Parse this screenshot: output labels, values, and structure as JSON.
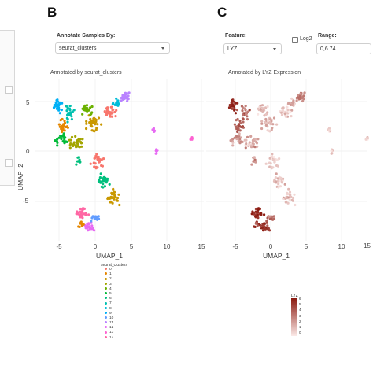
{
  "panels": {
    "b": {
      "letter": "B",
      "control_label": "Annotate Samples By:",
      "select_value": "seurat_clusters",
      "plot_title": "Annotated by seurat_clusters",
      "xlabel": "UMAP_1",
      "ylabel": "UMAP_2",
      "xticks": [
        "-5",
        "0",
        "5",
        "10",
        "15"
      ],
      "yticks": [
        "5",
        "0",
        "-5"
      ]
    },
    "c": {
      "letter": "C",
      "feature_label": "Feature:",
      "feature_value": "LYZ",
      "log2_label": "Log2",
      "range_label": "Range:",
      "range_value": "0,6.74",
      "plot_title": "Annotated by LYZ Expression",
      "xlabel": "UMAP_1",
      "xticks": [
        "-5",
        "0",
        "5",
        "10",
        "15"
      ]
    }
  },
  "legend": {
    "title": "seurat_clusters",
    "items": [
      "0",
      "1",
      "2",
      "3",
      "4",
      "5",
      "6",
      "7",
      "8",
      "9",
      "10",
      "11",
      "12",
      "13",
      "14"
    ],
    "colors": [
      "#F8766D",
      "#E58700",
      "#C99800",
      "#A3A500",
      "#6BB100",
      "#00BA38",
      "#00BF7D",
      "#00C0AF",
      "#00BCD8",
      "#00B0F6",
      "#619CFF",
      "#B983FF",
      "#E76BF3",
      "#FD61D1",
      "#FF67A4"
    ]
  },
  "colorbar": {
    "title": "LYZ",
    "ticks": [
      "6",
      "5",
      "4",
      "3",
      "2",
      "1",
      "0"
    ],
    "low_color": "#fbe9e7",
    "high_color": "#8b1a10"
  },
  "icons": {
    "select_caret": "chevron-down-icon",
    "log2_toggle": "checkbox-icon"
  }
}
